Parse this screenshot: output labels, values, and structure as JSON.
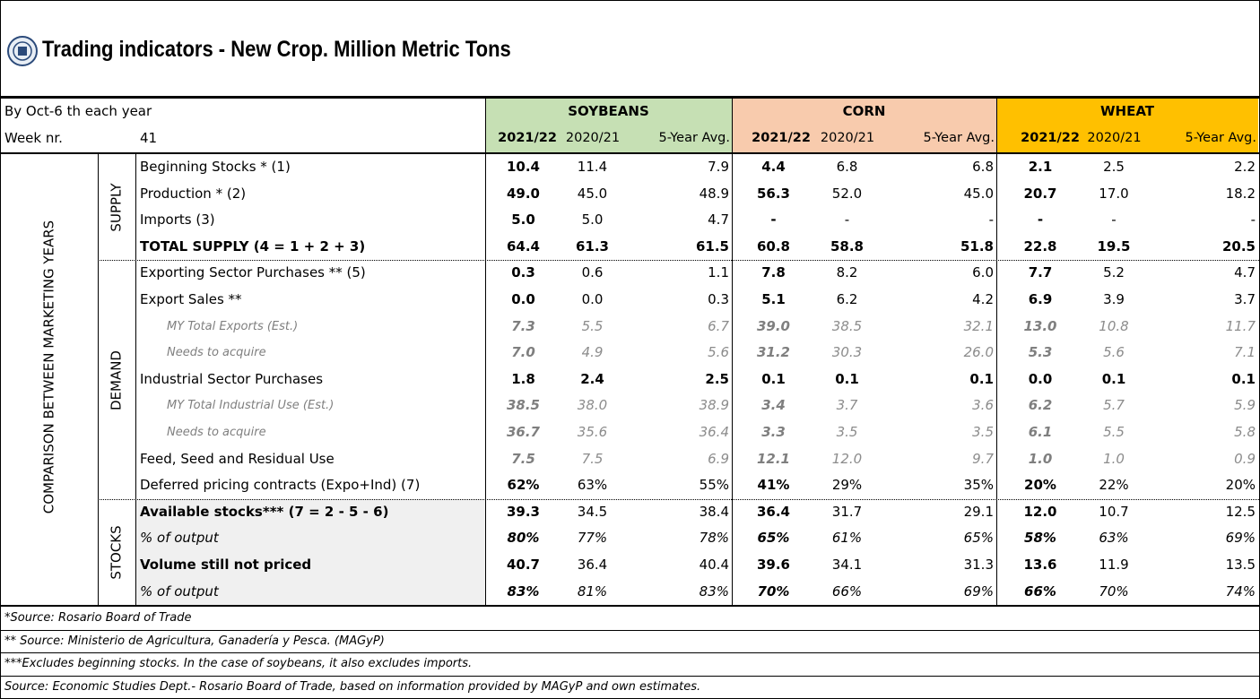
{
  "header": {
    "title": "Trading indicators - New Crop. Million Metric Tons",
    "date_label": "By Oct-6 th each year",
    "week_label": "Week nr.",
    "week": "41"
  },
  "groups": [
    {
      "name": "SOYBEANS",
      "color": "#c6e0b4",
      "years": [
        "2021/22",
        "2020/21",
        "5-Year Avg."
      ]
    },
    {
      "name": "CORN",
      "color": "#f8cbad",
      "years": [
        "2021/22",
        "2020/21",
        "5-Year Avg."
      ]
    },
    {
      "name": "WHEAT",
      "color": "#ffc000",
      "years": [
        "2021/22",
        "2020/21",
        "5-Year Avg."
      ]
    }
  ],
  "side_label": "COMPARISON BETWEEN MARKETING YEARS",
  "sections": [
    {
      "name": "SUPPLY",
      "rows": [
        {
          "label": "Beginning Stocks  * (1)",
          "style": "main",
          "values": [
            "10.4",
            "11.4",
            "7.9",
            "4.4",
            "6.8",
            "6.8",
            "2.1",
            "2.5",
            "2.2"
          ]
        },
        {
          "label": "Production * (2)",
          "style": "main",
          "values": [
            "49.0",
            "45.0",
            "48.9",
            "56.3",
            "52.0",
            "45.0",
            "20.7",
            "17.0",
            "18.2"
          ]
        },
        {
          "label": "Imports (3)",
          "style": "main",
          "values": [
            "5.0",
            "5.0",
            "4.7",
            "-",
            "-",
            "-",
            "-",
            "-",
            "-"
          ]
        },
        {
          "label": "TOTAL SUPPLY (4 = 1 + 2 + 3)",
          "style": "total",
          "values": [
            "64.4",
            "61.3",
            "61.5",
            "60.8",
            "58.8",
            "51.8",
            "22.8",
            "19.5",
            "20.5"
          ]
        }
      ]
    },
    {
      "name": "DEMAND",
      "rows": [
        {
          "label": "Exporting Sector Purchases ** (5)",
          "style": "main",
          "values": [
            "0.3",
            "0.6",
            "1.1",
            "7.8",
            "8.2",
            "6.0",
            "7.7",
            "5.2",
            "4.7"
          ]
        },
        {
          "label": "Export Sales **",
          "style": "main",
          "values": [
            "0.0",
            "0.0",
            "0.3",
            "5.1",
            "6.2",
            "4.2",
            "6.9",
            "3.9",
            "3.7"
          ]
        },
        {
          "label": "MY Total Exports (Est.)",
          "style": "sub",
          "values": [
            "7.3",
            "5.5",
            "6.7",
            "39.0",
            "38.5",
            "32.1",
            "13.0",
            "10.8",
            "11.7"
          ]
        },
        {
          "label": "Needs to acquire",
          "style": "sub",
          "values": [
            "7.0",
            "4.9",
            "5.6",
            "31.2",
            "30.3",
            "26.0",
            "5.3",
            "5.6",
            "7.1"
          ]
        },
        {
          "label": "Industrial Sector Purchases",
          "style": "strong",
          "values": [
            "1.8",
            "2.4",
            "2.5",
            "0.1",
            "0.1",
            "0.1",
            "0.0",
            "0.1",
            "0.1"
          ]
        },
        {
          "label": "MY Total Industrial Use (Est.)",
          "style": "sub",
          "values": [
            "38.5",
            "38.0",
            "38.9",
            "3.4",
            "3.7",
            "3.6",
            "6.2",
            "5.7",
            "5.9"
          ]
        },
        {
          "label": "Needs to acquire",
          "style": "sub",
          "values": [
            "36.7",
            "35.6",
            "36.4",
            "3.3",
            "3.5",
            "3.5",
            "6.1",
            "5.5",
            "5.8"
          ]
        },
        {
          "label": "Feed, Seed and Residual Use",
          "style": "feed",
          "values": [
            "7.5",
            "7.5",
            "6.9",
            "12.1",
            "12.0",
            "9.7",
            "1.0",
            "1.0",
            "0.9"
          ]
        },
        {
          "label": "Deferred pricing contracts (Expo+Ind) (7)",
          "style": "main",
          "values": [
            "62%",
            "63%",
            "55%",
            "41%",
            "29%",
            "35%",
            "20%",
            "22%",
            "20%"
          ]
        }
      ]
    },
    {
      "name": "STOCKS",
      "rows": [
        {
          "label": "Available stocks*** (7 = 2 - 5 - 6)",
          "style": "stock",
          "values": [
            "39.3",
            "34.5",
            "38.4",
            "36.4",
            "31.7",
            "29.1",
            "12.0",
            "10.7",
            "12.5"
          ]
        },
        {
          "label": "% of output",
          "style": "stockpct",
          "values": [
            "80%",
            "77%",
            "78%",
            "65%",
            "61%",
            "65%",
            "58%",
            "63%",
            "69%"
          ]
        },
        {
          "label": "Volume still not priced",
          "style": "stock",
          "values": [
            "40.7",
            "36.4",
            "40.4",
            "39.6",
            "34.1",
            "31.3",
            "13.6",
            "11.9",
            "13.5"
          ]
        },
        {
          "label": "% of output",
          "style": "stockpct",
          "values": [
            "83%",
            "81%",
            "83%",
            "70%",
            "66%",
            "69%",
            "66%",
            "70%",
            "74%"
          ]
        }
      ]
    }
  ],
  "footnotes": [
    "*Source: Rosario Board of Trade",
    "** Source: Ministerio de Agricultura, Ganadería y Pesca. (MAGyP)",
    "***Excludes beginning stocks. In the case of soybeans, it also excludes imports.",
    "Source: Economic Studies Dept.- Rosario Board of Trade, based on information provided by MAGyP and own estimates."
  ]
}
